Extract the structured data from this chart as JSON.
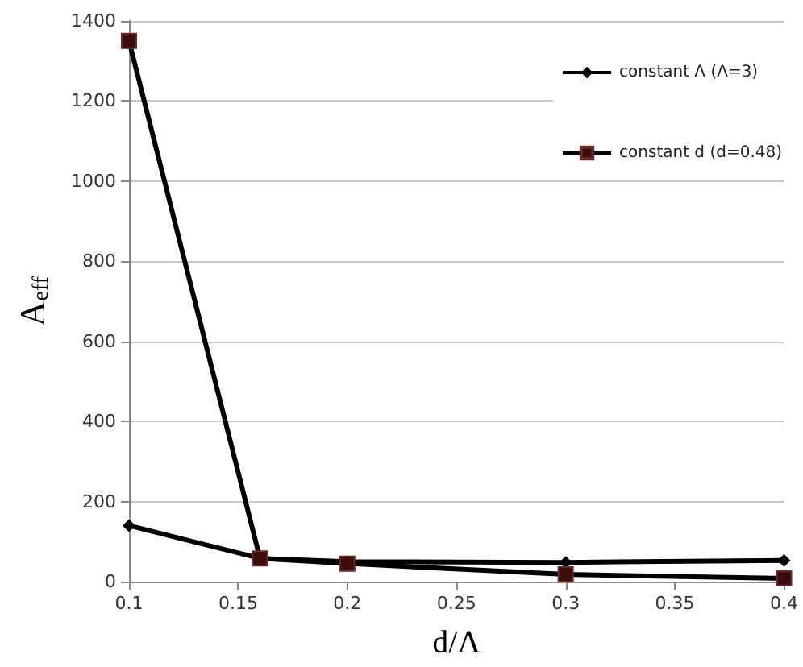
{
  "chart_data": {
    "type": "line",
    "xlabel": "d/Λ",
    "ylabel": "A$_{eff}$",
    "x": [
      0.1,
      0.16,
      0.2,
      0.3,
      0.4
    ],
    "series": [
      {
        "name": "constant Λ (Λ=3)",
        "color": "#000000",
        "marker": "diamond",
        "values": [
          140,
          58,
          50,
          48,
          53
        ]
      },
      {
        "name": "constant d (d=0.48)",
        "color": "#3b0d0d",
        "marker": "square",
        "values": [
          1350,
          58,
          45,
          18,
          8
        ]
      }
    ],
    "xlim": [
      0.1,
      0.4
    ],
    "xticks": [
      0.1,
      0.15,
      0.2,
      0.25,
      0.3,
      0.35,
      0.4
    ],
    "ylim": [
      0,
      1400
    ],
    "yticks": [
      0,
      200,
      400,
      600,
      800,
      1000,
      1200,
      1400
    ],
    "grid": "y",
    "legend": "top right",
    "line_style": "solid"
  }
}
